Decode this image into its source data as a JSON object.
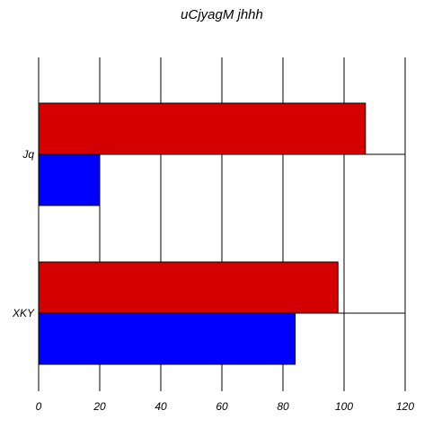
{
  "chart_data": {
    "type": "bar",
    "orientation": "horizontal",
    "title": "uCjyagM jhhh",
    "xlabel": "",
    "ylabel": "",
    "categories": [
      "Jq",
      "XKY"
    ],
    "series": [
      {
        "color": "#d40000",
        "values": [
          107,
          98
        ]
      },
      {
        "color": "#0000ff",
        "values": [
          20,
          84
        ]
      }
    ],
    "xlim": [
      0,
      120
    ],
    "xticks": [
      0,
      20,
      40,
      60,
      80,
      100,
      120
    ],
    "grid": {
      "x": true,
      "y": false
    }
  }
}
